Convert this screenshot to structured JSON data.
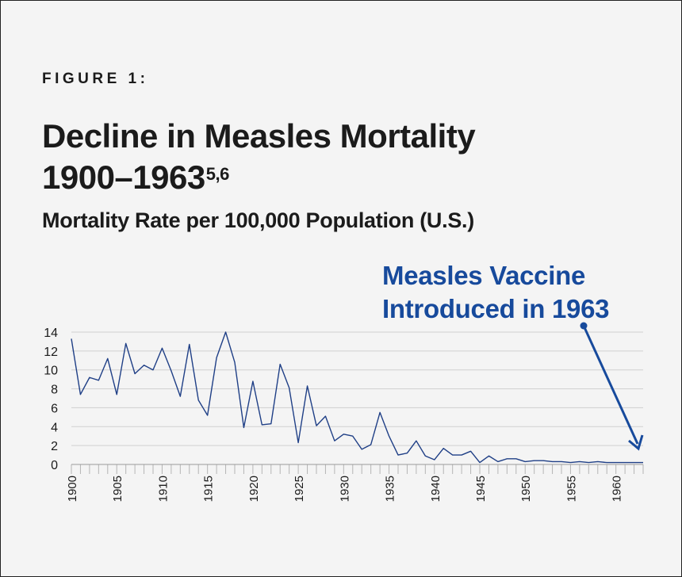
{
  "header": {
    "figure_label": "FIGURE 1:",
    "title_line1": "Decline in Measles Mortality",
    "title_line2": "1900–1963",
    "title_superscript": "5,6",
    "subtitle": "Mortality Rate per 100,000 Population (U.S.)"
  },
  "annotation": {
    "line1": "Measles Vaccine",
    "line2": "Introduced in 1963",
    "color": "#174a9c"
  },
  "colors": {
    "line": "#1f3f86",
    "grid": "#d0d0d0",
    "background": "#f4f4f4",
    "text": "#1b1b1b"
  },
  "chart_data": {
    "type": "line",
    "title": "Decline in Measles Mortality 1900–1963",
    "ylabel": "Mortality Rate per 100,000 Population (U.S.)",
    "xlabel": "",
    "x": [
      1900,
      1901,
      1902,
      1903,
      1904,
      1905,
      1906,
      1907,
      1908,
      1909,
      1910,
      1911,
      1912,
      1913,
      1914,
      1915,
      1916,
      1917,
      1918,
      1919,
      1920,
      1921,
      1922,
      1923,
      1924,
      1925,
      1926,
      1927,
      1928,
      1929,
      1930,
      1931,
      1932,
      1933,
      1934,
      1935,
      1936,
      1937,
      1938,
      1939,
      1940,
      1941,
      1942,
      1943,
      1944,
      1945,
      1946,
      1947,
      1948,
      1949,
      1950,
      1951,
      1952,
      1953,
      1954,
      1955,
      1956,
      1957,
      1958,
      1959,
      1960,
      1961,
      1962,
      1963
    ],
    "series": [
      {
        "values": [
          13.3,
          7.4,
          9.2,
          8.9,
          11.2,
          7.4,
          12.8,
          9.6,
          10.5,
          10.0,
          12.3,
          9.9,
          7.2,
          12.7,
          6.8,
          5.2,
          11.3,
          14.0,
          10.8,
          3.9,
          8.8,
          4.2,
          4.3,
          10.6,
          8.1,
          2.3,
          8.3,
          4.1,
          5.1,
          2.5,
          3.2,
          3.0,
          1.6,
          2.1,
          5.5,
          3.0,
          1.0,
          1.2,
          2.5,
          0.9,
          0.5,
          1.7,
          1.0,
          1.0,
          1.4,
          0.2,
          0.9,
          0.3,
          0.6,
          0.6,
          0.3,
          0.4,
          0.4,
          0.3,
          0.3,
          0.2,
          0.3,
          0.2,
          0.3,
          0.2,
          0.2,
          0.2,
          0.2,
          0.2
        ]
      }
    ],
    "xlim": [
      1900,
      1963
    ],
    "ylim": [
      0,
      14
    ],
    "yticks": [
      "0",
      "2",
      "4",
      "6",
      "8",
      "10",
      "12",
      "14"
    ],
    "xticks": [
      "1900",
      "1905",
      "1910",
      "1915",
      "1920",
      "1925",
      "1930",
      "1935",
      "1940",
      "1945",
      "1950",
      "1955",
      "1960"
    ],
    "grid": true,
    "legend": "none"
  }
}
